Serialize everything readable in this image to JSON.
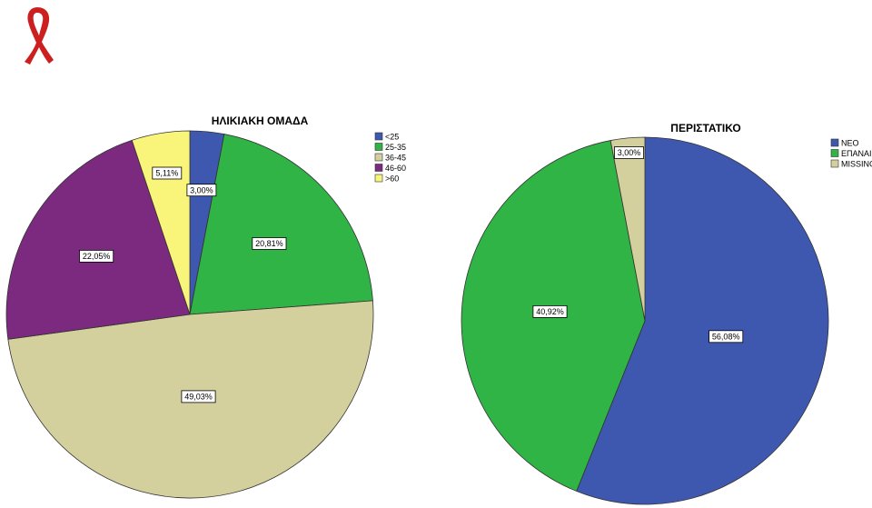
{
  "logo": {
    "icon": "red-ribbon-icon",
    "color": "#cc1f1f"
  },
  "chart_data": [
    {
      "type": "pie",
      "title": "ΗΛΙΚΙΑΚΗ ΟΜΑΔΑ",
      "legend_position": "top-right",
      "slices": [
        {
          "label": "<25",
          "value": 3.0,
          "value_label": "3,00%",
          "color": "#3e58b0"
        },
        {
          "label": "25-35",
          "value": 20.81,
          "value_label": "20,81%",
          "color": "#2fb445"
        },
        {
          "label": "36-45",
          "value": 49.03,
          "value_label": "49,03%",
          "color": "#d4d09e"
        },
        {
          "label": "46-60",
          "value": 22.05,
          "value_label": "22,05%",
          "color": "#7b2a7f"
        },
        {
          "label": ">60",
          "value": 5.11,
          "value_label": "5,11%",
          "color": "#f8f57a"
        }
      ]
    },
    {
      "type": "pie",
      "title": "ΠΕΡΙΣΤΑΤΙΚΟ",
      "legend_position": "top-right",
      "slices": [
        {
          "label": "ΝΕΟ",
          "value": 56.08,
          "value_label": "56,08%",
          "color": "#3e58b0"
        },
        {
          "label": "ΕΠΑΝΑΙ",
          "value": 40.92,
          "value_label": "40,92%",
          "color": "#2fb445"
        },
        {
          "label": "MISSING",
          "value": 3.0,
          "value_label": "3,00%",
          "color": "#d4d09e"
        }
      ]
    }
  ]
}
